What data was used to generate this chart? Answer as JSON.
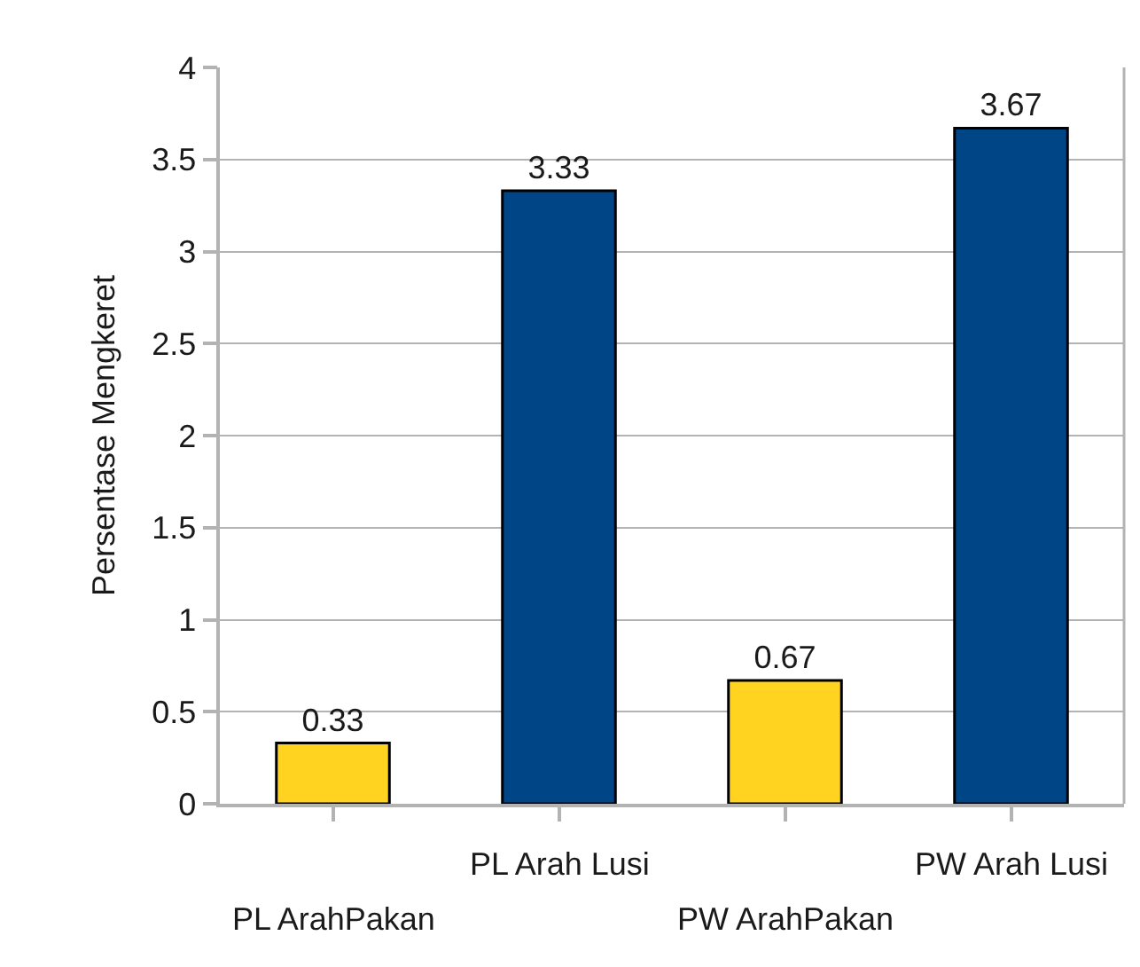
{
  "chart_data": {
    "type": "bar",
    "categories": [
      "PL ArahPakan",
      "PL Arah Lusi",
      "PW ArahPakan",
      "PW Arah Lusi"
    ],
    "values": [
      0.33,
      3.33,
      0.67,
      3.67
    ],
    "colors": [
      "#ffd320",
      "#004586",
      "#ffd320",
      "#004586"
    ],
    "ylabel": "Persentase Mengkeret",
    "ylim": [
      0,
      4
    ],
    "yticks": [
      0,
      0.5,
      1,
      1.5,
      2,
      2.5,
      3,
      3.5,
      4
    ],
    "grid": "y",
    "data_labels": true
  }
}
